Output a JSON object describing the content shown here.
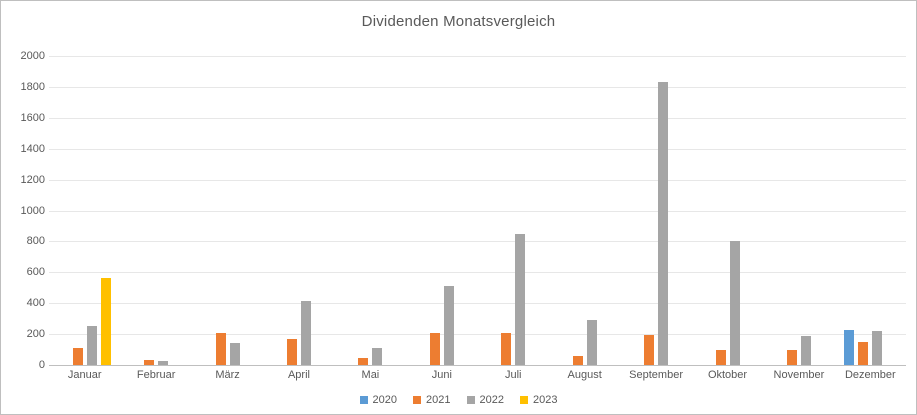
{
  "chart_data": {
    "type": "bar",
    "title": "Dividenden Monatsvergleich",
    "categories": [
      "Januar",
      "Februar",
      "März",
      "April",
      "Mai",
      "Juni",
      "Juli",
      "August",
      "September",
      "Oktober",
      "November",
      "Dezember"
    ],
    "series": [
      {
        "name": "2020",
        "color": "#5B9BD5",
        "values": [
          0,
          0,
          0,
          0,
          0,
          0,
          0,
          0,
          0,
          0,
          0,
          225
        ]
      },
      {
        "name": "2021",
        "color": "#ED7D31",
        "values": [
          110,
          35,
          210,
          170,
          45,
          205,
          205,
          60,
          195,
          100,
          100,
          150
        ]
      },
      {
        "name": "2022",
        "color": "#A5A5A5",
        "values": [
          250,
          25,
          140,
          415,
          110,
          510,
          845,
          290,
          1830,
          805,
          185,
          220
        ]
      },
      {
        "name": "2023",
        "color": "#FFC000",
        "values": [
          560,
          0,
          0,
          0,
          0,
          0,
          0,
          0,
          0,
          0,
          0,
          0
        ]
      }
    ],
    "xlabel": "",
    "ylabel": "",
    "ylim": [
      0,
      2000
    ],
    "ytick_step": 200,
    "grid": true,
    "legend_position": "bottom"
  }
}
